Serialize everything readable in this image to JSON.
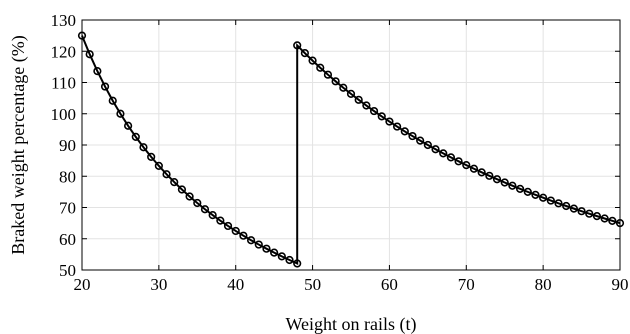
{
  "chart_data": {
    "type": "line",
    "title": "",
    "xlabel": "Weight on rails (t)",
    "ylabel": "Braked weight percentage (%)",
    "xlim": [
      20,
      90
    ],
    "ylim": [
      50,
      130
    ],
    "x_ticks": [
      "20",
      "30",
      "40",
      "50",
      "60",
      "70",
      "80",
      "90"
    ],
    "y_ticks": [
      "50",
      "60",
      "70",
      "80",
      "90",
      "100",
      "110",
      "120",
      "130"
    ],
    "grid": true,
    "legend": "none",
    "line_color": "#000000",
    "marker": "circle-open",
    "series": [
      {
        "name": "",
        "points": [
          [
            20,
            125.0
          ],
          [
            21,
            119.05
          ],
          [
            22,
            113.64
          ],
          [
            23,
            108.7
          ],
          [
            24,
            104.17
          ],
          [
            25,
            100.0
          ],
          [
            26,
            96.15
          ],
          [
            27,
            92.59
          ],
          [
            28,
            89.29
          ],
          [
            29,
            86.21
          ],
          [
            30,
            83.33
          ],
          [
            31,
            80.65
          ],
          [
            32,
            78.13
          ],
          [
            33,
            75.76
          ],
          [
            34,
            73.53
          ],
          [
            35,
            71.43
          ],
          [
            36,
            69.44
          ],
          [
            37,
            67.57
          ],
          [
            38,
            65.79
          ],
          [
            39,
            64.1
          ],
          [
            40,
            62.5
          ],
          [
            41,
            60.98
          ],
          [
            42,
            59.52
          ],
          [
            43,
            58.14
          ],
          [
            44,
            56.82
          ],
          [
            45,
            55.56
          ],
          [
            46,
            54.35
          ],
          [
            47,
            53.19
          ],
          [
            48,
            52.08
          ],
          [
            48,
            121.88
          ],
          [
            49,
            119.39
          ],
          [
            50,
            117.0
          ],
          [
            51,
            114.71
          ],
          [
            52,
            112.5
          ],
          [
            53,
            110.38
          ],
          [
            54,
            108.33
          ],
          [
            55,
            106.36
          ],
          [
            56,
            104.46
          ],
          [
            57,
            102.63
          ],
          [
            58,
            100.86
          ],
          [
            59,
            99.15
          ],
          [
            60,
            97.5
          ],
          [
            61,
            95.9
          ],
          [
            62,
            94.35
          ],
          [
            63,
            92.86
          ],
          [
            64,
            91.41
          ],
          [
            65,
            90.0
          ],
          [
            66,
            88.64
          ],
          [
            67,
            87.31
          ],
          [
            68,
            86.03
          ],
          [
            69,
            84.78
          ],
          [
            70,
            83.57
          ],
          [
            71,
            82.39
          ],
          [
            72,
            81.25
          ],
          [
            73,
            80.14
          ],
          [
            74,
            79.05
          ],
          [
            75,
            78.0
          ],
          [
            76,
            76.97
          ],
          [
            77,
            75.97
          ],
          [
            78,
            75.0
          ],
          [
            79,
            74.05
          ],
          [
            80,
            73.13
          ],
          [
            81,
            72.22
          ],
          [
            82,
            71.34
          ],
          [
            83,
            70.48
          ],
          [
            84,
            69.64
          ],
          [
            85,
            68.82
          ],
          [
            86,
            68.02
          ],
          [
            87,
            67.24
          ],
          [
            88,
            66.48
          ],
          [
            89,
            65.73
          ],
          [
            90,
            65.0
          ]
        ]
      }
    ]
  }
}
